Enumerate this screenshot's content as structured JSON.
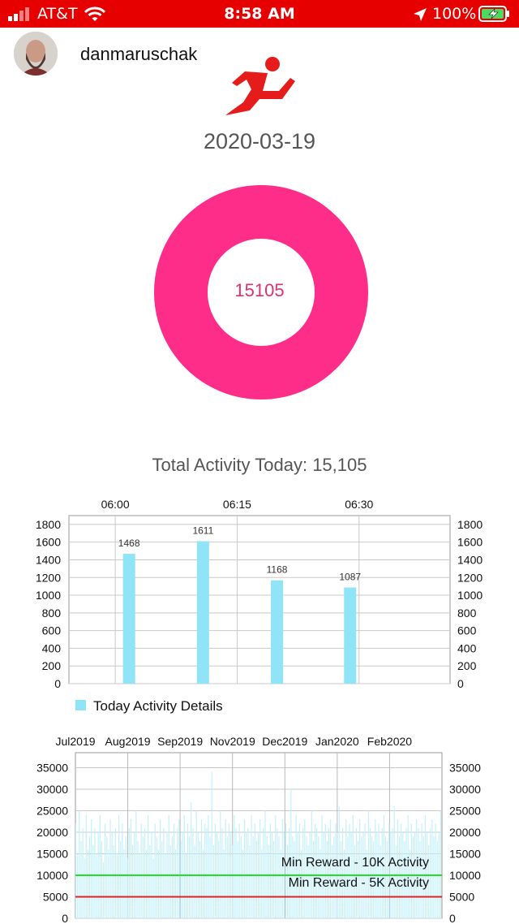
{
  "status_bar": {
    "carrier": "AT&T",
    "time": "8:58 AM",
    "battery": "100%"
  },
  "header": {
    "username": "danmaruschak",
    "logo_icon": "running-man-icon"
  },
  "date": "2020-03-19",
  "donut": {
    "value_label": "15105",
    "color": "#ff2d8a"
  },
  "total_activity": "Total Activity Today: 15,105",
  "chart_data": [
    {
      "type": "bar",
      "x_tick_labels": [
        "06:00",
        "06:15",
        "06:30"
      ],
      "x_tick_values": [
        0,
        15,
        30
      ],
      "x_range": [
        -5.7,
        41.2
      ],
      "bars": [
        {
          "x": 1.7,
          "value": 1468,
          "label": "1468"
        },
        {
          "x": 10.8,
          "value": 1611,
          "label": "1611"
        },
        {
          "x": 19.9,
          "value": 1168,
          "label": "1168"
        },
        {
          "x": 28.9,
          "value": 1087,
          "label": "1087"
        }
      ],
      "ylim": [
        0,
        1900
      ],
      "y_ticks": [
        0,
        200,
        400,
        600,
        800,
        1000,
        1200,
        1400,
        1600,
        1800
      ],
      "grid": true,
      "legend": {
        "label": "Today Activity Details",
        "color": "#8fe5f7",
        "position": "bottom-left"
      },
      "bar_color": "#8fe5f7"
    },
    {
      "type": "bar",
      "month_labels": [
        "Jul2019",
        "Aug2019",
        "Sep2019",
        "Nov2019",
        "Dec2019",
        "Jan2020",
        "Feb2020"
      ],
      "ylim": [
        0,
        38500
      ],
      "y_ticks": [
        0,
        5000,
        10000,
        15000,
        20000,
        25000,
        30000,
        35000
      ],
      "grid": true,
      "bar_color": "#c2f0fb",
      "daily_values": [
        22000,
        15000,
        25000,
        18000,
        21000,
        14000,
        24000,
        16000,
        19000,
        23000,
        17000,
        21000,
        15000,
        20000,
        24000,
        18000,
        13000,
        22000,
        19000,
        16000,
        23000,
        20000,
        17000,
        21000,
        15000,
        24000,
        18000,
        22000,
        16000,
        19000,
        14000,
        21000,
        23000,
        17000,
        20000,
        25000,
        18000,
        15000,
        22000,
        19000,
        21000,
        16000,
        24000,
        17000,
        20000,
        14000,
        22000,
        19000,
        16000,
        23000,
        18000,
        21000,
        15000,
        20000,
        24000,
        17000,
        19000,
        22000,
        16000,
        21000,
        23000,
        18000,
        20000,
        24000,
        15000,
        22000,
        19000,
        27000,
        21000,
        17000,
        25000,
        20000,
        18000,
        23000,
        16000,
        22000,
        21000,
        24000,
        19000,
        34000,
        17000,
        22000,
        20000,
        18000,
        25000,
        21000,
        16000,
        23000,
        19000,
        22000,
        20000,
        17000,
        24000,
        21000,
        18000,
        22000,
        19000,
        16000,
        23000,
        20000,
        21000,
        17000,
        24000,
        19000,
        22000,
        18000,
        20000,
        23000,
        16000,
        21000,
        25000,
        19000,
        17000,
        22000,
        20000,
        18000,
        24000,
        21000,
        19000,
        16000,
        23000,
        20000,
        22000,
        17000,
        21000,
        30000,
        19000,
        18000,
        24000,
        20000,
        22000,
        16000,
        21000,
        23000,
        19000,
        17000,
        20000,
        25000,
        18000,
        22000,
        21000,
        19000,
        16000,
        24000,
        20000,
        22000,
        18000,
        21000,
        23000,
        17000,
        19000,
        22000,
        20000,
        26000,
        18000,
        21000,
        16000,
        23000,
        19000,
        22000,
        20000,
        24000,
        17000,
        21000,
        18000,
        23000,
        19000,
        20000,
        22000,
        16000,
        25000,
        21000,
        19000,
        18000,
        23000,
        20000,
        22000,
        17000,
        21000,
        24000,
        19000,
        18000,
        22000,
        20000,
        21000,
        26000,
        17000,
        23000,
        19000,
        22000,
        20000,
        18000,
        21000,
        24000,
        16000,
        22000,
        19000,
        20000,
        23000,
        21000,
        18000,
        22000,
        19000,
        24000,
        20000,
        17000,
        21000,
        23000,
        19000,
        22000,
        18000,
        20000,
        25000
      ],
      "reference_lines": [
        {
          "value": 10000,
          "label": "Min Reward - 10K Activity",
          "color": "#22e022"
        },
        {
          "value": 5000,
          "label": "Min Reward - 5K Activity",
          "color": "#e02222"
        }
      ]
    }
  ]
}
